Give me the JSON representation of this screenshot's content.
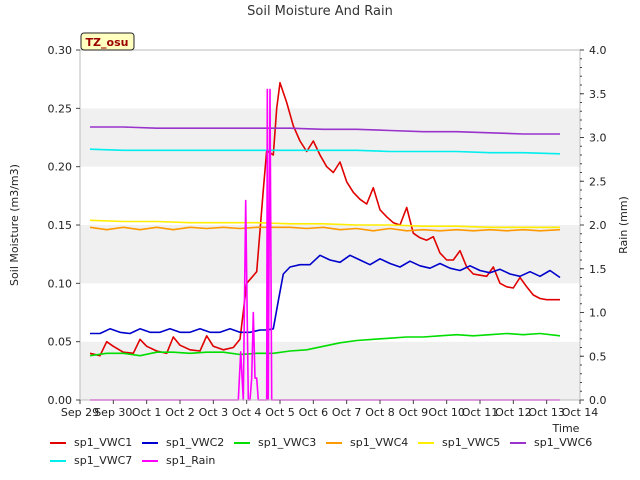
{
  "chart_data": {
    "type": "line",
    "title": "Soil Moisture And Rain",
    "site_label": "TZ_osu",
    "xlabel": "Time",
    "ylabel_left": "Soil Moisture (m3/m3)",
    "ylabel_right": "Rain (mm)",
    "xlim": [
      0,
      15
    ],
    "ylim_left": [
      0,
      0.3
    ],
    "ylim_right": [
      0,
      4.0
    ],
    "x_ticks": [
      {
        "x": 0,
        "label": "Sep 29"
      },
      {
        "x": 1,
        "label": "Sep 30"
      },
      {
        "x": 2,
        "label": "Oct 1"
      },
      {
        "x": 3,
        "label": "Oct 2"
      },
      {
        "x": 4,
        "label": "Oct 3"
      },
      {
        "x": 5,
        "label": "Oct 4"
      },
      {
        "x": 6,
        "label": "Oct 5"
      },
      {
        "x": 7,
        "label": "Oct 6"
      },
      {
        "x": 8,
        "label": "Oct 7"
      },
      {
        "x": 9,
        "label": "Oct 8"
      },
      {
        "x": 10,
        "label": "Oct 9"
      },
      {
        "x": 11,
        "label": "Oct 10"
      },
      {
        "x": 12,
        "label": "Oct 11"
      },
      {
        "x": 13,
        "label": "Oct 12"
      },
      {
        "x": 14,
        "label": "Oct 13"
      },
      {
        "x": 15,
        "label": "Oct 14"
      }
    ],
    "y_ticks_left": [
      "0.00",
      "0.05",
      "0.10",
      "0.15",
      "0.20",
      "0.25",
      "0.30"
    ],
    "y_ticks_right": [
      "0.0",
      "0.5",
      "1.0",
      "1.5",
      "2.0",
      "2.5",
      "3.0",
      "3.5",
      "4.0"
    ],
    "grid": "horizontal bands",
    "legend_position": "bottom",
    "series": [
      {
        "name": "sp1_VWC1",
        "color": "#e00000",
        "axis": "left",
        "x": [
          0.3,
          0.6,
          0.8,
          1.0,
          1.3,
          1.6,
          1.8,
          2.0,
          2.3,
          2.6,
          2.8,
          3.0,
          3.3,
          3.6,
          3.8,
          4.0,
          4.3,
          4.6,
          4.8,
          5.0,
          5.3,
          5.5,
          5.6,
          5.7,
          5.8,
          5.9,
          6.0,
          6.2,
          6.4,
          6.6,
          6.8,
          7.0,
          7.2,
          7.4,
          7.6,
          7.8,
          8.0,
          8.2,
          8.4,
          8.6,
          8.8,
          9.0,
          9.2,
          9.4,
          9.6,
          9.8,
          10.0,
          10.2,
          10.4,
          10.6,
          10.8,
          11.0,
          11.2,
          11.4,
          11.6,
          11.8,
          12.0,
          12.2,
          12.4,
          12.6,
          12.8,
          13.0,
          13.2,
          13.4,
          13.6,
          13.8,
          14.0,
          14.2,
          14.4
        ],
        "y": [
          0.04,
          0.038,
          0.05,
          0.046,
          0.041,
          0.04,
          0.052,
          0.046,
          0.042,
          0.04,
          0.054,
          0.047,
          0.043,
          0.042,
          0.055,
          0.046,
          0.043,
          0.045,
          0.052,
          0.1,
          0.11,
          0.18,
          0.214,
          0.212,
          0.21,
          0.25,
          0.272,
          0.255,
          0.235,
          0.222,
          0.213,
          0.222,
          0.21,
          0.2,
          0.195,
          0.204,
          0.187,
          0.178,
          0.172,
          0.168,
          0.182,
          0.163,
          0.157,
          0.152,
          0.15,
          0.165,
          0.143,
          0.139,
          0.137,
          0.14,
          0.126,
          0.12,
          0.12,
          0.128,
          0.114,
          0.108,
          0.107,
          0.106,
          0.114,
          0.1,
          0.097,
          0.096,
          0.105,
          0.097,
          0.09,
          0.087,
          0.086,
          0.086,
          0.086
        ]
      },
      {
        "name": "sp1_VWC2",
        "color": "#0000cc",
        "axis": "left",
        "x": [
          0.3,
          0.6,
          0.9,
          1.2,
          1.5,
          1.8,
          2.1,
          2.4,
          2.7,
          3.0,
          3.3,
          3.6,
          3.9,
          4.2,
          4.5,
          4.8,
          5.1,
          5.4,
          5.6,
          5.8,
          5.95,
          6.1,
          6.3,
          6.6,
          6.9,
          7.2,
          7.5,
          7.8,
          8.1,
          8.4,
          8.7,
          9.0,
          9.3,
          9.6,
          9.9,
          10.2,
          10.5,
          10.8,
          11.1,
          11.4,
          11.7,
          12.0,
          12.3,
          12.6,
          12.9,
          13.2,
          13.5,
          13.8,
          14.1,
          14.4
        ],
        "y": [
          0.057,
          0.057,
          0.061,
          0.058,
          0.057,
          0.061,
          0.058,
          0.058,
          0.061,
          0.058,
          0.058,
          0.061,
          0.058,
          0.058,
          0.061,
          0.058,
          0.058,
          0.06,
          0.06,
          0.061,
          0.085,
          0.108,
          0.114,
          0.116,
          0.116,
          0.124,
          0.12,
          0.118,
          0.124,
          0.12,
          0.116,
          0.121,
          0.117,
          0.114,
          0.119,
          0.115,
          0.113,
          0.117,
          0.113,
          0.111,
          0.115,
          0.111,
          0.109,
          0.112,
          0.108,
          0.106,
          0.11,
          0.106,
          0.111,
          0.105
        ]
      },
      {
        "name": "sp1_VWC3",
        "color": "#00dd00",
        "axis": "left",
        "x": [
          0.3,
          0.8,
          1.3,
          1.8,
          2.3,
          2.8,
          3.3,
          3.8,
          4.3,
          4.8,
          5.3,
          5.8,
          6.3,
          6.8,
          7.3,
          7.8,
          8.3,
          8.8,
          9.3,
          9.8,
          10.3,
          10.8,
          11.3,
          11.8,
          12.3,
          12.8,
          13.3,
          13.8,
          14.4
        ],
        "y": [
          0.038,
          0.04,
          0.04,
          0.038,
          0.041,
          0.041,
          0.04,
          0.041,
          0.041,
          0.039,
          0.04,
          0.04,
          0.042,
          0.043,
          0.046,
          0.049,
          0.051,
          0.052,
          0.053,
          0.054,
          0.054,
          0.055,
          0.056,
          0.055,
          0.056,
          0.057,
          0.056,
          0.057,
          0.055
        ]
      },
      {
        "name": "sp1_VWC4",
        "color": "#ff9900",
        "axis": "left",
        "x": [
          0.3,
          0.8,
          1.3,
          1.8,
          2.3,
          2.8,
          3.3,
          3.8,
          4.3,
          4.8,
          5.3,
          5.8,
          6.3,
          6.8,
          7.3,
          7.8,
          8.3,
          8.8,
          9.3,
          9.8,
          10.3,
          10.8,
          11.3,
          11.8,
          12.3,
          12.8,
          13.3,
          13.8,
          14.4
        ],
        "y": [
          0.148,
          0.146,
          0.148,
          0.146,
          0.148,
          0.146,
          0.148,
          0.147,
          0.148,
          0.147,
          0.148,
          0.148,
          0.148,
          0.147,
          0.148,
          0.146,
          0.147,
          0.145,
          0.147,
          0.145,
          0.146,
          0.145,
          0.146,
          0.145,
          0.146,
          0.145,
          0.146,
          0.145,
          0.146
        ]
      },
      {
        "name": "sp1_VWC5",
        "color": "#ffee00",
        "axis": "left",
        "x": [
          0.3,
          1.3,
          2.3,
          3.3,
          4.3,
          5.3,
          6.3,
          7.3,
          8.3,
          9.3,
          10.3,
          11.3,
          12.3,
          13.3,
          14.4
        ],
        "y": [
          0.154,
          0.153,
          0.153,
          0.152,
          0.152,
          0.152,
          0.151,
          0.151,
          0.15,
          0.15,
          0.149,
          0.149,
          0.148,
          0.148,
          0.148
        ]
      },
      {
        "name": "sp1_VWC6",
        "color": "#9933cc",
        "axis": "left",
        "x": [
          0.3,
          1.3,
          2.3,
          3.3,
          4.3,
          5.3,
          6.3,
          7.3,
          8.3,
          9.3,
          10.3,
          11.3,
          12.3,
          13.3,
          14.4
        ],
        "y": [
          0.234,
          0.234,
          0.233,
          0.233,
          0.233,
          0.233,
          0.233,
          0.232,
          0.232,
          0.231,
          0.23,
          0.23,
          0.229,
          0.228,
          0.228
        ]
      },
      {
        "name": "sp1_VWC7",
        "color": "#00eeee",
        "axis": "left",
        "x": [
          0.3,
          1.3,
          2.3,
          3.3,
          4.3,
          5.3,
          6.3,
          7.3,
          8.3,
          9.3,
          10.3,
          11.3,
          12.3,
          13.3,
          14.4
        ],
        "y": [
          0.215,
          0.214,
          0.214,
          0.214,
          0.214,
          0.214,
          0.214,
          0.214,
          0.214,
          0.213,
          0.213,
          0.213,
          0.212,
          0.212,
          0.211
        ]
      },
      {
        "name": "sp1_Rain",
        "color": "#ff00ff",
        "axis": "right",
        "x": [
          0.3,
          4.75,
          4.82,
          4.9,
          4.97,
          5.05,
          5.1,
          5.15,
          5.2,
          5.25,
          5.3,
          5.35,
          5.42,
          5.5,
          5.6,
          5.62,
          5.65,
          5.7,
          5.75,
          5.8,
          14.4
        ],
        "y": [
          0.0,
          0.0,
          0.55,
          0.0,
          2.28,
          0.0,
          0.0,
          0.25,
          1.0,
          0.25,
          0.25,
          0.0,
          0.0,
          0.0,
          0.0,
          3.55,
          0.0,
          3.55,
          0.0,
          0.0,
          0.0
        ]
      }
    ]
  }
}
